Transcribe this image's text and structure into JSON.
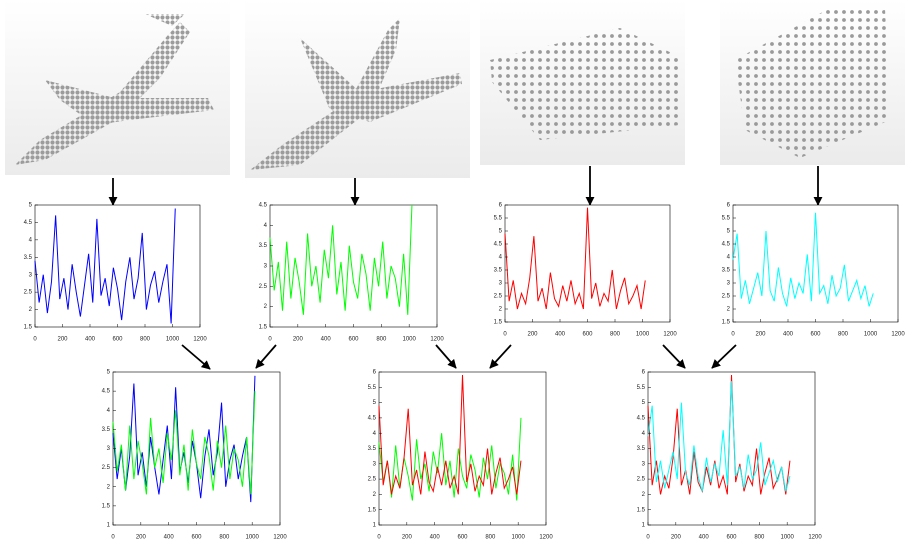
{
  "chart_data": [
    {
      "type": "line",
      "x": [
        0,
        30,
        60,
        90,
        120,
        150,
        180,
        210,
        240,
        270,
        300,
        330,
        360,
        390,
        420,
        450,
        480,
        510,
        540,
        570,
        600,
        630,
        660,
        690,
        720,
        750,
        780,
        810,
        840,
        870,
        900,
        930,
        960,
        990,
        1020
      ],
      "series": [
        {
          "color": "#0000ff",
          "values": [
            3.4,
            2.2,
            3.0,
            1.9,
            2.8,
            4.7,
            2.3,
            2.9,
            2.0,
            3.3,
            2.5,
            1.8,
            2.7,
            3.6,
            2.2,
            4.6,
            2.4,
            2.9,
            2.1,
            3.2,
            2.6,
            1.7,
            2.8,
            3.5,
            2.3,
            2.9,
            4.2,
            2.0,
            2.7,
            3.1,
            2.2,
            2.8,
            3.3,
            1.6,
            4.9
          ]
        }
      ],
      "xlim": [
        0,
        1200
      ],
      "ylim": [
        1.5,
        5
      ],
      "xticks": [
        0,
        200,
        400,
        600,
        800,
        1000,
        1200
      ],
      "yticks": [
        1.5,
        2,
        2.5,
        3,
        3.5,
        4,
        4.5,
        5
      ]
    },
    {
      "type": "line",
      "x": [
        0,
        30,
        60,
        90,
        120,
        150,
        180,
        210,
        240,
        270,
        300,
        330,
        360,
        390,
        420,
        450,
        480,
        510,
        540,
        570,
        600,
        630,
        660,
        690,
        720,
        750,
        780,
        810,
        840,
        870,
        900,
        930,
        960,
        990,
        1020
      ],
      "series": [
        {
          "color": "#00ff00",
          "values": [
            3.7,
            2.4,
            3.1,
            1.9,
            3.6,
            2.2,
            3.2,
            2.6,
            1.8,
            3.8,
            2.5,
            3.0,
            2.1,
            3.4,
            2.7,
            4.0,
            2.3,
            3.1,
            1.9,
            3.5,
            2.6,
            2.2,
            3.3,
            2.8,
            1.9,
            3.2,
            2.5,
            3.6,
            2.2,
            3.0,
            2.7,
            2.0,
            3.3,
            1.8,
            4.5
          ]
        }
      ],
      "xlim": [
        0,
        1200
      ],
      "ylim": [
        1.5,
        4.5
      ],
      "xticks": [
        0,
        200,
        400,
        600,
        800,
        1000,
        1200
      ],
      "yticks": [
        1.5,
        2,
        2.5,
        3,
        3.5,
        4,
        4.5
      ]
    },
    {
      "type": "line",
      "x": [
        0,
        30,
        60,
        90,
        120,
        150,
        180,
        210,
        240,
        270,
        300,
        330,
        360,
        390,
        420,
        450,
        480,
        510,
        540,
        570,
        600,
        630,
        660,
        690,
        720,
        750,
        780,
        810,
        840,
        870,
        900,
        930,
        960,
        990,
        1020
      ],
      "series": [
        {
          "color": "#ff0000",
          "values": [
            4.9,
            2.3,
            3.1,
            2.0,
            2.6,
            2.2,
            3.2,
            4.8,
            2.3,
            2.8,
            2.0,
            3.4,
            2.4,
            2.1,
            2.9,
            2.3,
            3.1,
            2.2,
            2.6,
            2.0,
            5.9,
            2.4,
            3.0,
            2.1,
            2.6,
            2.3,
            3.5,
            2.0,
            2.7,
            3.2,
            2.2,
            2.5,
            2.9,
            2.0,
            3.1
          ]
        }
      ],
      "xlim": [
        0,
        1200
      ],
      "ylim": [
        1.5,
        6
      ],
      "xticks": [
        0,
        200,
        400,
        600,
        800,
        1000,
        1200
      ],
      "yticks": [
        1.5,
        2,
        2.5,
        3,
        3.5,
        4,
        4.5,
        5,
        5.5,
        6
      ]
    },
    {
      "type": "line",
      "x": [
        0,
        30,
        60,
        90,
        120,
        150,
        180,
        210,
        240,
        270,
        300,
        330,
        360,
        390,
        420,
        450,
        480,
        510,
        540,
        570,
        600,
        630,
        660,
        690,
        720,
        750,
        780,
        810,
        840,
        870,
        900,
        930,
        960,
        990,
        1020
      ],
      "series": [
        {
          "color": "#00ffff",
          "values": [
            3.9,
            4.9,
            2.4,
            3.1,
            2.2,
            2.8,
            3.4,
            2.5,
            5.0,
            2.7,
            2.3,
            3.6,
            2.6,
            2.1,
            3.2,
            2.4,
            3.0,
            2.6,
            4.1,
            2.3,
            5.7,
            2.6,
            2.9,
            2.2,
            3.3,
            2.5,
            2.8,
            3.7,
            2.3,
            2.7,
            3.1,
            2.4,
            2.9,
            2.1,
            2.6
          ]
        }
      ],
      "xlim": [
        0,
        1200
      ],
      "ylim": [
        1.5,
        6
      ],
      "xticks": [
        0,
        200,
        400,
        600,
        800,
        1000,
        1200
      ],
      "yticks": [
        1.5,
        2,
        2.5,
        3,
        3.5,
        4,
        4.5,
        5,
        5.5,
        6
      ]
    },
    {
      "type": "line",
      "x": [
        0,
        30,
        60,
        90,
        120,
        150,
        180,
        210,
        240,
        270,
        300,
        330,
        360,
        390,
        420,
        450,
        480,
        510,
        540,
        570,
        600,
        630,
        660,
        690,
        720,
        750,
        780,
        810,
        840,
        870,
        900,
        930,
        960,
        990,
        1020
      ],
      "series": [
        {
          "color": "#0000ff",
          "values": [
            3.4,
            2.2,
            3.0,
            1.9,
            2.8,
            4.7,
            2.3,
            2.9,
            2.0,
            3.3,
            2.5,
            1.8,
            2.7,
            3.6,
            2.2,
            4.6,
            2.4,
            2.9,
            2.1,
            3.2,
            2.6,
            1.7,
            2.8,
            3.5,
            2.3,
            2.9,
            4.2,
            2.0,
            2.7,
            3.1,
            2.2,
            2.8,
            3.3,
            1.6,
            4.9
          ]
        },
        {
          "color": "#00ff00",
          "values": [
            3.7,
            2.4,
            3.1,
            1.9,
            3.6,
            2.2,
            3.2,
            2.6,
            1.8,
            3.8,
            2.5,
            3.0,
            2.1,
            3.4,
            2.7,
            4.0,
            2.3,
            3.1,
            1.9,
            3.5,
            2.6,
            2.2,
            3.3,
            2.8,
            1.9,
            3.2,
            2.5,
            3.6,
            2.2,
            3.0,
            2.7,
            2.0,
            3.3,
            1.8,
            4.5
          ]
        }
      ],
      "xlim": [
        0,
        1200
      ],
      "ylim": [
        1,
        5
      ],
      "xticks": [
        0,
        200,
        400,
        600,
        800,
        1000,
        1200
      ],
      "yticks": [
        1,
        1.5,
        2,
        2.5,
        3,
        3.5,
        4,
        4.5,
        5
      ]
    },
    {
      "type": "line",
      "x": [
        0,
        30,
        60,
        90,
        120,
        150,
        180,
        210,
        240,
        270,
        300,
        330,
        360,
        390,
        420,
        450,
        480,
        510,
        540,
        570,
        600,
        630,
        660,
        690,
        720,
        750,
        780,
        810,
        840,
        870,
        900,
        930,
        960,
        990,
        1020
      ],
      "series": [
        {
          "color": "#00ff00",
          "values": [
            3.7,
            2.4,
            3.1,
            1.9,
            3.6,
            2.2,
            3.2,
            2.6,
            1.8,
            3.8,
            2.5,
            3.0,
            2.1,
            3.4,
            2.7,
            4.0,
            2.3,
            3.1,
            1.9,
            3.5,
            2.6,
            2.2,
            3.3,
            2.8,
            1.9,
            3.2,
            2.5,
            3.6,
            2.2,
            3.0,
            2.7,
            2.0,
            3.3,
            1.8,
            4.5
          ]
        },
        {
          "color": "#ff0000",
          "values": [
            4.9,
            2.3,
            3.1,
            2.0,
            2.6,
            2.2,
            3.2,
            4.8,
            2.3,
            2.8,
            2.0,
            3.4,
            2.4,
            2.1,
            2.9,
            2.3,
            3.1,
            2.2,
            2.6,
            2.0,
            5.9,
            2.4,
            3.0,
            2.1,
            2.6,
            2.3,
            3.5,
            2.0,
            2.7,
            3.2,
            2.2,
            2.5,
            2.9,
            2.0,
            3.1
          ]
        }
      ],
      "xlim": [
        0,
        1200
      ],
      "ylim": [
        1,
        6
      ],
      "xticks": [
        0,
        200,
        400,
        600,
        800,
        1000,
        1200
      ],
      "yticks": [
        1,
        1.5,
        2,
        2.5,
        3,
        3.5,
        4,
        4.5,
        5,
        5.5,
        6
      ]
    },
    {
      "type": "line",
      "x": [
        0,
        30,
        60,
        90,
        120,
        150,
        180,
        210,
        240,
        270,
        300,
        330,
        360,
        390,
        420,
        450,
        480,
        510,
        540,
        570,
        600,
        630,
        660,
        690,
        720,
        750,
        780,
        810,
        840,
        870,
        900,
        930,
        960,
        990,
        1020
      ],
      "series": [
        {
          "color": "#ff0000",
          "values": [
            4.9,
            2.3,
            3.1,
            2.0,
            2.6,
            2.2,
            3.2,
            4.8,
            2.3,
            2.8,
            2.0,
            3.4,
            2.4,
            2.1,
            2.9,
            2.3,
            3.1,
            2.2,
            2.6,
            2.0,
            5.9,
            2.4,
            3.0,
            2.1,
            2.6,
            2.3,
            3.5,
            2.0,
            2.7,
            3.2,
            2.2,
            2.5,
            2.9,
            2.0,
            3.1
          ]
        },
        {
          "color": "#00ffff",
          "values": [
            3.9,
            4.9,
            2.4,
            3.1,
            2.2,
            2.8,
            3.4,
            2.5,
            5.0,
            2.7,
            2.3,
            3.6,
            2.6,
            2.1,
            3.2,
            2.4,
            3.0,
            2.6,
            4.1,
            2.3,
            5.7,
            2.6,
            2.9,
            2.2,
            3.3,
            2.5,
            2.8,
            3.7,
            2.3,
            2.7,
            3.1,
            2.4,
            2.9,
            2.1,
            2.6
          ]
        }
      ],
      "xlim": [
        0,
        1200
      ],
      "ylim": [
        1,
        6
      ],
      "xticks": [
        0,
        200,
        400,
        600,
        800,
        1000,
        1200
      ],
      "yticks": [
        1,
        1.5,
        2,
        2.5,
        3,
        3.5,
        4,
        4.5,
        5,
        5.5,
        6
      ]
    }
  ]
}
